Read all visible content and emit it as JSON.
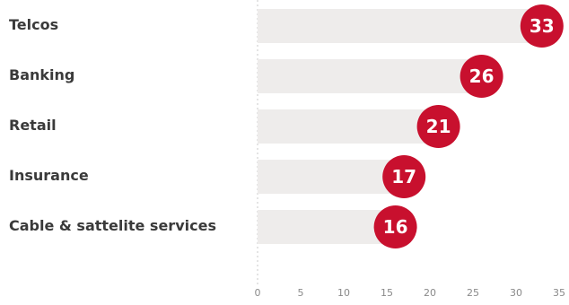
{
  "chart_data": {
    "type": "bar",
    "orientation": "horizontal",
    "categories": [
      "Telcos",
      "Banking",
      "Retail",
      "Insurance",
      "Cable & sattelite services"
    ],
    "values": [
      33,
      26,
      21,
      17,
      16
    ],
    "xlim": [
      0,
      35
    ],
    "xticks": [
      "0",
      "5",
      "10",
      "15",
      "20",
      "25",
      "30",
      "35"
    ],
    "title": "",
    "xlabel": "",
    "ylabel": "",
    "grid": false,
    "legend": "none",
    "colors": {
      "bar_track": "#eeeceb",
      "marker": "#c8102e",
      "value_text": "#ffffff",
      "category_text": "#3a3a3a",
      "tick_text": "#8a8a8a",
      "axis_line": "#c9c9c9"
    }
  }
}
